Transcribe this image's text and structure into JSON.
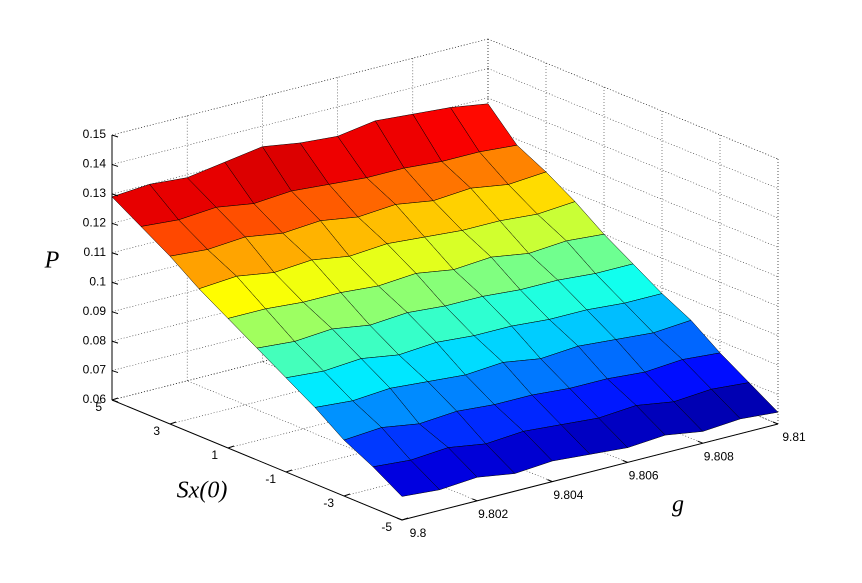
{
  "chart_data": {
    "type": "surface",
    "colormap": "jet",
    "grid": true,
    "xlabel": "g",
    "ylabel": "Sx(0)",
    "zlabel": "P",
    "x": [
      9.8,
      9.801,
      9.802,
      9.803,
      9.804,
      9.805,
      9.806,
      9.807,
      9.808,
      9.809,
      9.81
    ],
    "y": [
      -5,
      -4,
      -3,
      -2,
      -1,
      0,
      1,
      2,
      3,
      4,
      5
    ],
    "z": [
      [
        0.068,
        0.067,
        0.068,
        0.066,
        0.067,
        0.066,
        0.065,
        0.066,
        0.064,
        0.065,
        0.064
      ],
      [
        0.074,
        0.073,
        0.074,
        0.072,
        0.073,
        0.072,
        0.071,
        0.072,
        0.07,
        0.071,
        0.07
      ],
      [
        0.079,
        0.08,
        0.078,
        0.079,
        0.078,
        0.078,
        0.077,
        0.077,
        0.076,
        0.077,
        0.076
      ],
      [
        0.086,
        0.085,
        0.086,
        0.085,
        0.084,
        0.085,
        0.083,
        0.084,
        0.083,
        0.082,
        0.083
      ],
      [
        0.092,
        0.091,
        0.092,
        0.09,
        0.091,
        0.09,
        0.09,
        0.089,
        0.089,
        0.088,
        0.088
      ],
      [
        0.098,
        0.097,
        0.098,
        0.096,
        0.097,
        0.096,
        0.096,
        0.095,
        0.095,
        0.094,
        0.094
      ],
      [
        0.104,
        0.104,
        0.103,
        0.103,
        0.102,
        0.103,
        0.101,
        0.102,
        0.1,
        0.101,
        0.1
      ],
      [
        0.11,
        0.111,
        0.109,
        0.11,
        0.108,
        0.109,
        0.108,
        0.107,
        0.107,
        0.106,
        0.107
      ],
      [
        0.117,
        0.116,
        0.117,
        0.115,
        0.116,
        0.114,
        0.115,
        0.113,
        0.114,
        0.112,
        0.113
      ],
      [
        0.123,
        0.122,
        0.123,
        0.121,
        0.122,
        0.121,
        0.12,
        0.12,
        0.119,
        0.119,
        0.118
      ],
      [
        0.129,
        0.13,
        0.129,
        0.131,
        0.133,
        0.131,
        0.13,
        0.132,
        0.131,
        0.13,
        0.128
      ]
    ],
    "xlim": [
      9.8,
      9.81
    ],
    "ylim": [
      -5,
      5
    ],
    "zlim": [
      0.06,
      0.15
    ],
    "xticks": [
      9.8,
      9.802,
      9.804,
      9.806,
      9.808,
      9.81
    ],
    "yticks": [
      -5,
      -3,
      -1,
      1,
      3,
      5
    ],
    "zticks": [
      0.06,
      0.07,
      0.08,
      0.09,
      0.1,
      0.11,
      0.12,
      0.13,
      0.14,
      0.15
    ]
  }
}
